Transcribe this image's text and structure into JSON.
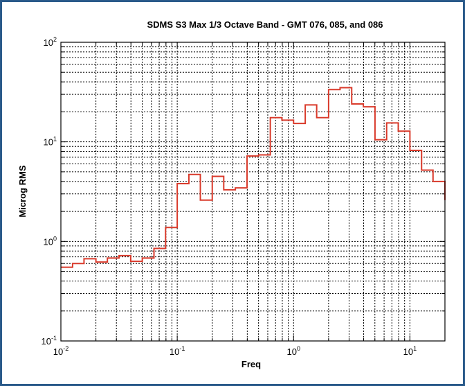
{
  "chart_data": {
    "type": "line",
    "title": "SDMS S3 Max 1/3 Octave Band - GMT 076, 085, and 086",
    "xlabel": "Freq",
    "ylabel": "Microg RMS",
    "x_scale": "log",
    "y_scale": "log",
    "xlim": [
      0.01,
      20
    ],
    "ylim": [
      0.1,
      100
    ],
    "grid": true,
    "x_ticks": [
      {
        "value": 0.01,
        "base": "10",
        "exp": "-2"
      },
      {
        "value": 0.1,
        "base": "10",
        "exp": "-1"
      },
      {
        "value": 1,
        "base": "10",
        "exp": "0"
      },
      {
        "value": 10,
        "base": "10",
        "exp": "1"
      }
    ],
    "y_ticks": [
      {
        "value": 0.1,
        "base": "10",
        "exp": "-1"
      },
      {
        "value": 1,
        "base": "10",
        "exp": "0"
      },
      {
        "value": 10,
        "base": "10",
        "exp": "1"
      },
      {
        "value": 100,
        "base": "10",
        "exp": "2"
      }
    ],
    "series": [
      {
        "color": "#d93a2b",
        "style": "step",
        "band_edges": [
          0.01,
          0.0126,
          0.0158,
          0.02,
          0.0251,
          0.0316,
          0.0398,
          0.0501,
          0.0631,
          0.0794,
          0.1,
          0.126,
          0.158,
          0.2,
          0.251,
          0.316,
          0.398,
          0.501,
          0.631,
          0.794,
          1.0,
          1.26,
          1.58,
          2.0,
          2.51,
          3.16,
          3.98,
          5.01,
          6.31,
          7.94,
          10.0,
          12.6,
          15.8,
          20.0
        ],
        "values": [
          0.55,
          0.6,
          0.67,
          0.62,
          0.68,
          0.72,
          0.63,
          0.68,
          0.85,
          1.38,
          3.8,
          4.7,
          2.6,
          4.5,
          3.3,
          3.45,
          7.2,
          7.4,
          17.5,
          16.5,
          15.3,
          23.5,
          17.5,
          33.5,
          35,
          24,
          22.5,
          10.5,
          15.5,
          12.8,
          8.2,
          5.2,
          4.0,
          2.6
        ]
      }
    ]
  }
}
